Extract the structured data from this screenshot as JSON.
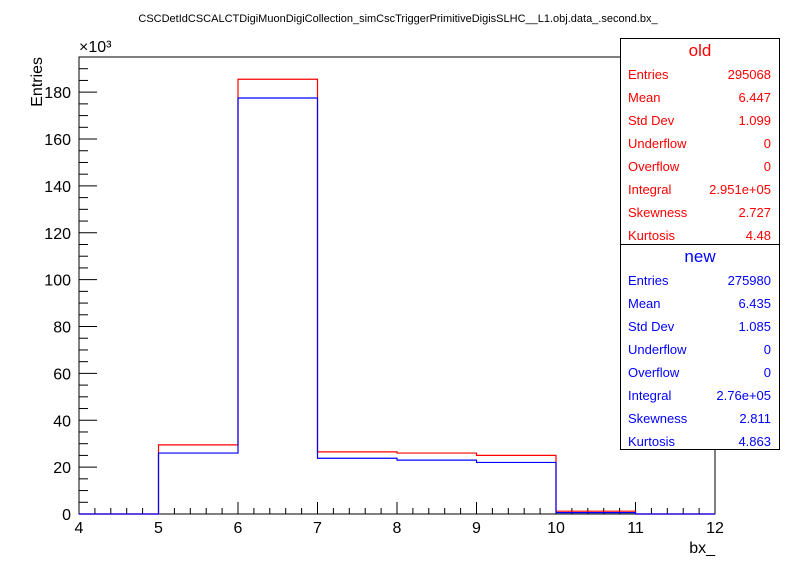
{
  "chart_data": {
    "type": "histogram",
    "title": "CSCDetIdCSCALCTDigiMuonDigiCollection_simCscTriggerPrimitiveDigisSLHC__L1.obj.data_.second.bx_",
    "xlabel": "bx_",
    "ylabel": "Entries",
    "y_multiplier_label": "×10³",
    "xlim": [
      4,
      12
    ],
    "ylim": [
      0,
      195
    ],
    "x_ticks": [
      4,
      5,
      6,
      7,
      8,
      9,
      10,
      11,
      12
    ],
    "y_ticks": [
      0,
      20,
      40,
      60,
      80,
      100,
      120,
      140,
      160,
      180
    ],
    "bin_edges": [
      4,
      5,
      6,
      7,
      8,
      9,
      10,
      11,
      12
    ],
    "series": [
      {
        "name": "old",
        "color": "#ff0000",
        "values": [
          0,
          29.5,
          185.5,
          26.5,
          26.0,
          25.0,
          1.2,
          0
        ]
      },
      {
        "name": "new",
        "color": "#0000ff",
        "values": [
          0,
          26.0,
          177.5,
          23.8,
          23.0,
          22.0,
          0.6,
          0
        ]
      }
    ]
  },
  "stats": [
    {
      "name": "old",
      "color": "#ff0000",
      "rows": [
        {
          "label": "Entries",
          "value": "295068"
        },
        {
          "label": "Mean",
          "value": "6.447"
        },
        {
          "label": "Std Dev",
          "value": "1.099"
        },
        {
          "label": "Underflow",
          "value": "0"
        },
        {
          "label": "Overflow",
          "value": "0"
        },
        {
          "label": "Integral",
          "value": "2.951e+05"
        },
        {
          "label": "Skewness",
          "value": "2.727"
        },
        {
          "label": "Kurtosis",
          "value": "4.48"
        }
      ]
    },
    {
      "name": "new",
      "color": "#0000ff",
      "rows": [
        {
          "label": "Entries",
          "value": "275980"
        },
        {
          "label": "Mean",
          "value": "6.435"
        },
        {
          "label": "Std Dev",
          "value": "1.085"
        },
        {
          "label": "Underflow",
          "value": "0"
        },
        {
          "label": "Overflow",
          "value": "0"
        },
        {
          "label": "Integral",
          "value": "2.76e+05"
        },
        {
          "label": "Skewness",
          "value": "2.811"
        },
        {
          "label": "Kurtosis",
          "value": "4.863"
        }
      ]
    }
  ]
}
